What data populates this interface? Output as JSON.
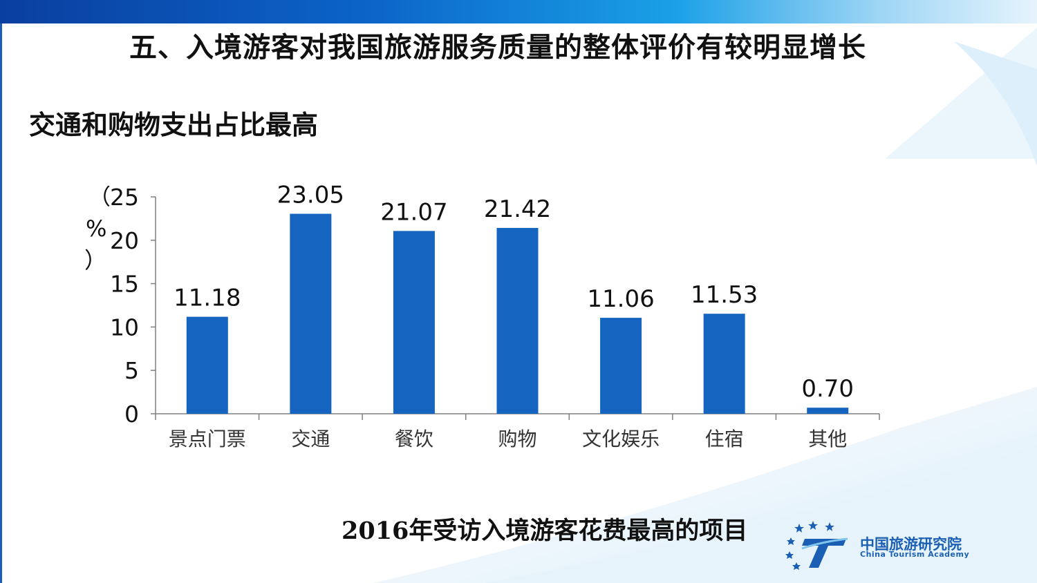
{
  "slide": {
    "title": "五、入境游客对我国旅游服务质量的整体评价有较明显增长",
    "subtitle": "交通和购物支出占比最高",
    "caption": "2016年受访入境游客花费最高的项目"
  },
  "logo": {
    "name_cn": "中国旅游研究院",
    "name_en": "China Tourism Academy"
  },
  "colors": {
    "bar": "#1565c0",
    "axis": "#7f7f7f",
    "text": "#111111",
    "brand": "#1a5fb4"
  },
  "chart_data": {
    "type": "bar",
    "categories": [
      "景点门票",
      "交通",
      "餐饮",
      "购物",
      "文化娱乐",
      "住宿",
      "其他"
    ],
    "values": [
      11.18,
      23.05,
      21.07,
      21.42,
      11.06,
      11.53,
      0.7
    ],
    "value_labels": [
      "11.18",
      "23.05",
      "21.07",
      "21.42",
      "11.06",
      "11.53",
      "0.70"
    ],
    "ylabel": "（%）",
    "ylim": [
      0,
      25
    ],
    "yticks": [
      0,
      5,
      10,
      15,
      20,
      25
    ],
    "grid": false,
    "legend": "none"
  }
}
